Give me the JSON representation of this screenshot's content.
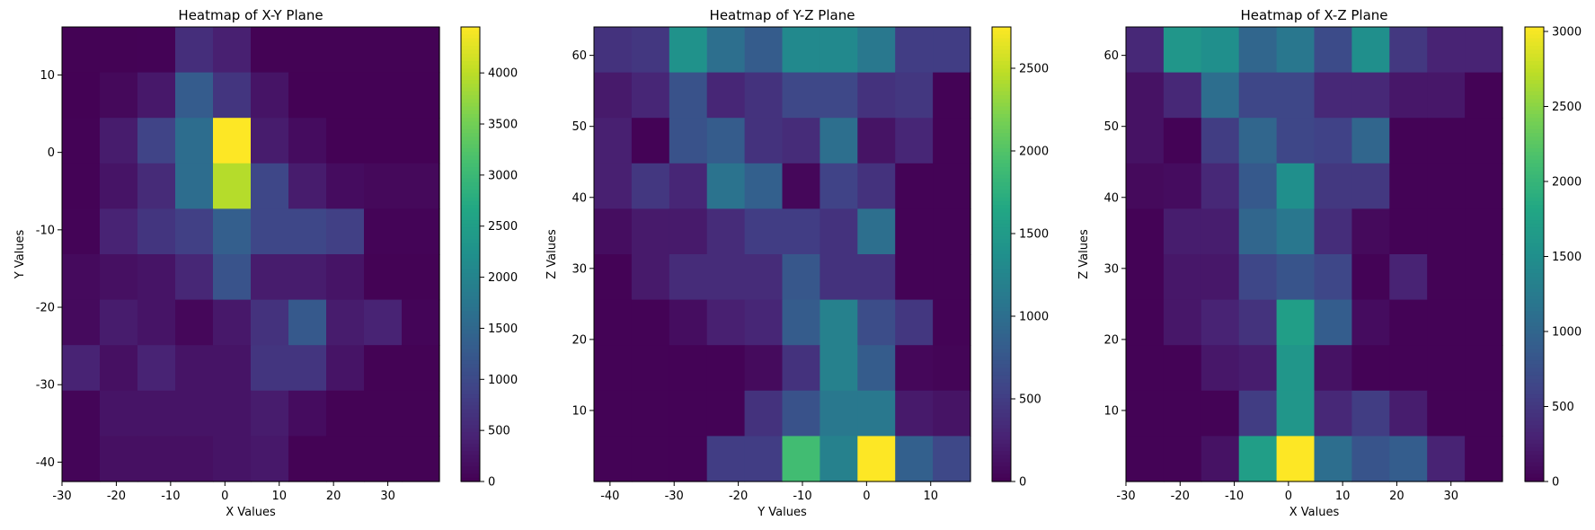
{
  "chart_data": [
    {
      "type": "heatmap",
      "title": "Heatmap of X-Y Plane",
      "xlabel": "X Values",
      "ylabel": "Y Values",
      "xlim": [
        -30,
        39.5
      ],
      "ylim": [
        -42.5,
        16.2
      ],
      "xticks": [
        -30,
        -20,
        -10,
        0,
        10,
        20,
        30
      ],
      "yticks": [
        -40,
        -30,
        -20,
        -10,
        0,
        10
      ],
      "colorbar": {
        "min": 0,
        "max": 4450,
        "ticks": [
          0,
          500,
          1000,
          1500,
          2000,
          2500,
          3000,
          3500,
          4000
        ]
      },
      "values": [
        [
          20,
          20,
          30,
          600,
          400,
          20,
          20,
          20,
          20,
          20
        ],
        [
          10,
          100,
          300,
          1300,
          700,
          250,
          10,
          10,
          10,
          10
        ],
        [
          30,
          350,
          900,
          1600,
          4450,
          350,
          150,
          10,
          10,
          10
        ],
        [
          30,
          250,
          550,
          1600,
          3950,
          950,
          350,
          150,
          100,
          100
        ],
        [
          40,
          450,
          700,
          850,
          1350,
          950,
          950,
          850,
          40,
          40
        ],
        [
          120,
          200,
          250,
          500,
          1150,
          350,
          350,
          250,
          20,
          20
        ],
        [
          120,
          350,
          250,
          80,
          300,
          650,
          1250,
          350,
          450,
          50
        ],
        [
          450,
          200,
          450,
          250,
          250,
          700,
          700,
          250,
          20,
          20
        ],
        [
          50,
          250,
          250,
          250,
          250,
          350,
          150,
          20,
          20,
          20
        ],
        [
          50,
          200,
          200,
          200,
          250,
          300,
          20,
          20,
          20,
          20
        ]
      ]
    },
    {
      "type": "heatmap",
      "title": "Heatmap of Y-Z Plane",
      "xlabel": "Y Values",
      "ylabel": "Z Values",
      "xlim": [
        -42.5,
        16.2
      ],
      "ylim": [
        0,
        64
      ],
      "xticks": [
        -40,
        -30,
        -20,
        -10,
        0,
        10
      ],
      "yticks": [
        10,
        20,
        30,
        40,
        50,
        60
      ],
      "colorbar": {
        "min": 0,
        "max": 2750,
        "ticks": [
          0,
          500,
          1000,
          1500,
          2000,
          2500
        ]
      },
      "values": [
        [
          400,
          450,
          1400,
          1000,
          800,
          1300,
          1300,
          1100,
          500,
          500
        ],
        [
          200,
          300,
          700,
          300,
          400,
          600,
          600,
          400,
          450,
          20
        ],
        [
          250,
          20,
          700,
          800,
          400,
          350,
          1000,
          150,
          300,
          20
        ],
        [
          250,
          450,
          300,
          1050,
          850,
          50,
          550,
          400,
          20,
          20
        ],
        [
          100,
          200,
          200,
          350,
          500,
          500,
          400,
          1000,
          20,
          20
        ],
        [
          20,
          200,
          350,
          350,
          350,
          750,
          400,
          400,
          20,
          20
        ],
        [
          20,
          20,
          100,
          250,
          300,
          800,
          1200,
          650,
          450,
          20
        ],
        [
          20,
          20,
          20,
          20,
          80,
          400,
          1200,
          800,
          50,
          30
        ],
        [
          20,
          20,
          20,
          20,
          400,
          700,
          1100,
          1100,
          200,
          150
        ],
        [
          20,
          20,
          20,
          500,
          500,
          1900,
          1200,
          2750,
          850,
          600
        ]
      ]
    },
    {
      "type": "heatmap",
      "title": "Heatmap of X-Z Plane",
      "xlabel": "X Values",
      "ylabel": "Z Values",
      "xlim": [
        -30,
        39.5
      ],
      "ylim": [
        0,
        64
      ],
      "xticks": [
        -30,
        -20,
        -10,
        0,
        10,
        20,
        30
      ],
      "yticks": [
        10,
        20,
        30,
        40,
        50,
        60
      ],
      "colorbar": {
        "min": 0,
        "max": 3030,
        "ticks": [
          0,
          500,
          1000,
          1500,
          2000,
          2500,
          3000
        ]
      },
      "values": [
        [
          350,
          1600,
          1500,
          1000,
          1200,
          700,
          1500,
          500,
          300,
          300
        ],
        [
          150,
          350,
          1100,
          650,
          650,
          350,
          350,
          200,
          200,
          20
        ],
        [
          150,
          20,
          550,
          1000,
          650,
          600,
          1000,
          20,
          20,
          20
        ],
        [
          80,
          100,
          350,
          850,
          1500,
          500,
          500,
          20,
          20,
          20
        ],
        [
          20,
          250,
          250,
          1000,
          1200,
          400,
          80,
          20,
          20,
          20
        ],
        [
          20,
          200,
          200,
          650,
          800,
          650,
          20,
          300,
          20,
          20
        ],
        [
          20,
          200,
          300,
          450,
          1700,
          900,
          100,
          20,
          20,
          20
        ],
        [
          20,
          20,
          200,
          250,
          1600,
          150,
          20,
          20,
          20,
          20
        ],
        [
          20,
          20,
          20,
          550,
          1600,
          350,
          550,
          250,
          20,
          20
        ],
        [
          20,
          20,
          150,
          1700,
          3030,
          1100,
          800,
          900,
          300,
          20
        ]
      ]
    }
  ]
}
